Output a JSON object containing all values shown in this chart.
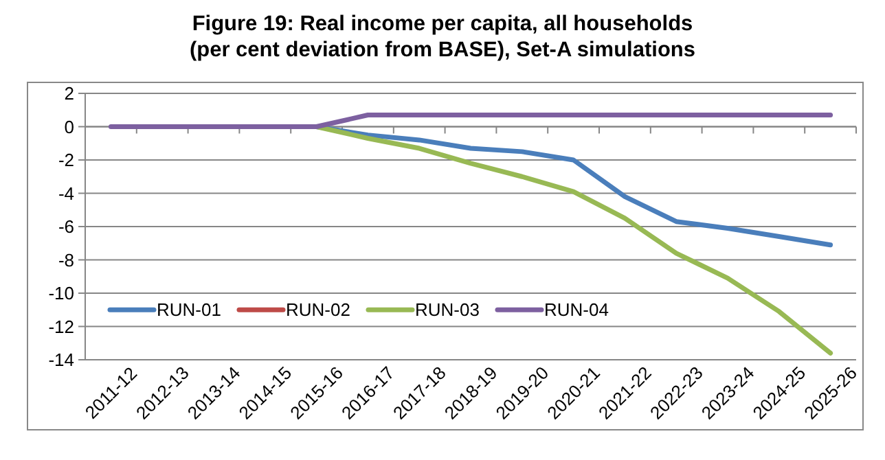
{
  "chart_data": {
    "type": "line",
    "title": "Figure 19: Real income per capita, all households\n(per cent deviation from BASE), Set-A simulations",
    "categories": [
      "2011-12",
      "2012-13",
      "2013-14",
      "2014-15",
      "2015-16",
      "2016-17",
      "2017-18",
      "2018-19",
      "2019-20",
      "2020-21",
      "2021-22",
      "2022-23",
      "2023-24",
      "2024-25",
      "2025-26"
    ],
    "series": [
      {
        "name": "RUN-01",
        "color": "#4a7ebb",
        "values": [
          null,
          null,
          null,
          null,
          0,
          -0.5,
          -0.8,
          -1.3,
          -1.5,
          -2.0,
          -4.2,
          -5.7,
          -6.1,
          -6.6,
          -7.1
        ]
      },
      {
        "name": "RUN-02",
        "color": "#be4b48",
        "values": [
          null,
          null,
          null,
          null,
          null,
          null,
          null,
          null,
          null,
          null,
          null,
          null,
          null,
          null,
          null
        ]
      },
      {
        "name": "RUN-03",
        "color": "#98b954",
        "values": [
          null,
          null,
          null,
          null,
          0,
          -0.7,
          -1.3,
          -2.2,
          -3.0,
          -3.9,
          -5.5,
          -7.6,
          -9.1,
          -11.1,
          -13.6
        ]
      },
      {
        "name": "RUN-04",
        "color": "#7d60a0",
        "values": [
          0,
          0,
          0,
          0,
          0,
          0.7,
          0.7,
          0.7,
          0.7,
          0.7,
          0.7,
          0.7,
          0.7,
          0.7,
          0.7
        ]
      }
    ],
    "ylim": [
      -14,
      2
    ],
    "yticks": [
      -14,
      -12,
      -10,
      -8,
      -6,
      -4,
      -2,
      0,
      2
    ],
    "grid": "y",
    "legend": "bottom left",
    "marker": "none",
    "line_style": "solid"
  }
}
